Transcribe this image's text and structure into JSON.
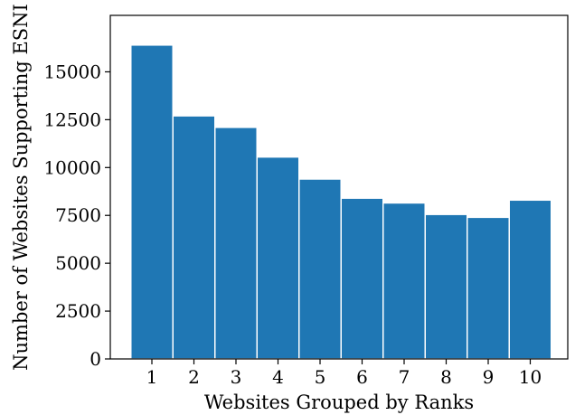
{
  "chart_data": {
    "type": "bar",
    "xlabel": "Websites Grouped by Ranks",
    "ylabel": "Number of Websites Supporting ESNI",
    "categories": [
      "1",
      "2",
      "3",
      "4",
      "5",
      "6",
      "7",
      "8",
      "9",
      "10"
    ],
    "values": [
      16400,
      12700,
      12100,
      10550,
      9400,
      8400,
      8150,
      7550,
      7400,
      8300
    ],
    "ylim": [
      0,
      17950
    ],
    "yticks": [
      0,
      2500,
      5000,
      7500,
      10000,
      12500,
      15000
    ],
    "ytick_labels": [
      "0",
      "2500",
      "5000",
      "7500",
      "10000",
      "12500",
      "15000"
    ],
    "grid": false,
    "bar_color": "#1f77b4"
  }
}
